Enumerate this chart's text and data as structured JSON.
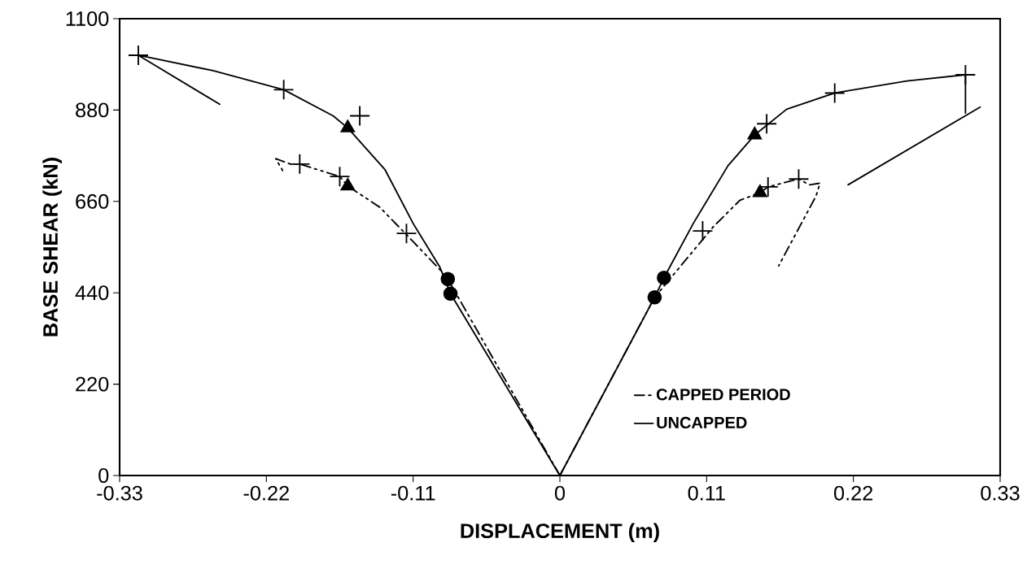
{
  "chart_data": {
    "type": "line",
    "xlabel": "DISPLACEMENT (m)",
    "ylabel": "BASE SHEAR (kN)",
    "xlim": [
      -0.33,
      0.33
    ],
    "xticks": [
      -0.33,
      -0.22,
      -0.11,
      0,
      0.11,
      0.22,
      0.33
    ],
    "ylim": [
      0,
      1100
    ],
    "yticks": [
      0,
      220,
      440,
      660,
      880,
      1100
    ],
    "grid": false,
    "legend": "bottom right",
    "series": [
      {
        "color": "#000000",
        "line_style": "solid",
        "x": [
          0,
          -0.082,
          -0.09,
          -0.11,
          -0.131,
          -0.159,
          -0.17,
          -0.207,
          -0.26,
          -0.316,
          -0.255
        ],
        "values": [
          0,
          438,
          502,
          607,
          736,
          837,
          866,
          929,
          975,
          1012,
          894
        ]
      },
      {
        "color": "#000000",
        "line_style": "dashed",
        "x": [
          0,
          -0.084,
          -0.09,
          -0.115,
          -0.135,
          -0.159,
          -0.165,
          -0.195,
          -0.202,
          -0.213,
          -0.207
        ],
        "values": [
          0,
          473,
          496,
          580,
          646,
          697,
          720,
          750,
          750,
          763,
          730
        ]
      },
      {
        "name": "CAPPED PERIOD",
        "color": "#000000",
        "line_style": "dashed",
        "x": [
          0,
          0.071,
          0.115,
          0.135,
          0.15,
          0.156,
          0.179,
          0.187,
          0.195,
          0.192,
          0.164
        ],
        "values": [
          0,
          429,
          599,
          663,
          681,
          695,
          714,
          700,
          704,
          673,
          505
        ]
      },
      {
        "name": "UNCAPPED",
        "color": "#000000",
        "line_style": "solid",
        "x": [
          0,
          0.071,
          0.078,
          0.1,
          0.126,
          0.146,
          0.17,
          0.206,
          0.26,
          0.304,
          0.304
        ],
        "values": [
          0,
          429,
          476,
          607,
          746,
          820,
          882,
          921,
          950,
          965,
          873
        ]
      },
      {
        "color": "#000000",
        "line_style": "solid",
        "x": [
          0.216,
          0.315
        ],
        "values": [
          700,
          887
        ]
      },
      {
        "type": "scatter",
        "marker": "cross",
        "color": "#000000",
        "x": [
          -0.316,
          -0.207,
          -0.195,
          -0.165,
          -0.15,
          -0.115,
          0.107,
          0.155,
          0.156,
          0.179,
          0.206,
          0.304
        ],
        "values": [
          1012,
          929,
          750,
          720,
          866,
          583,
          589,
          847,
          695,
          714,
          921,
          965
        ]
      },
      {
        "type": "scatter",
        "marker": "triangle",
        "color": "#000000",
        "x": [
          -0.159,
          -0.159,
          0.146,
          0.15
        ],
        "values": [
          837,
          697,
          820,
          681
        ]
      },
      {
        "type": "scatter",
        "marker": "circle",
        "color": "#000000",
        "x": [
          -0.084,
          -0.082,
          0.078,
          0.071
        ],
        "values": [
          473,
          438,
          476,
          429
        ]
      }
    ]
  }
}
